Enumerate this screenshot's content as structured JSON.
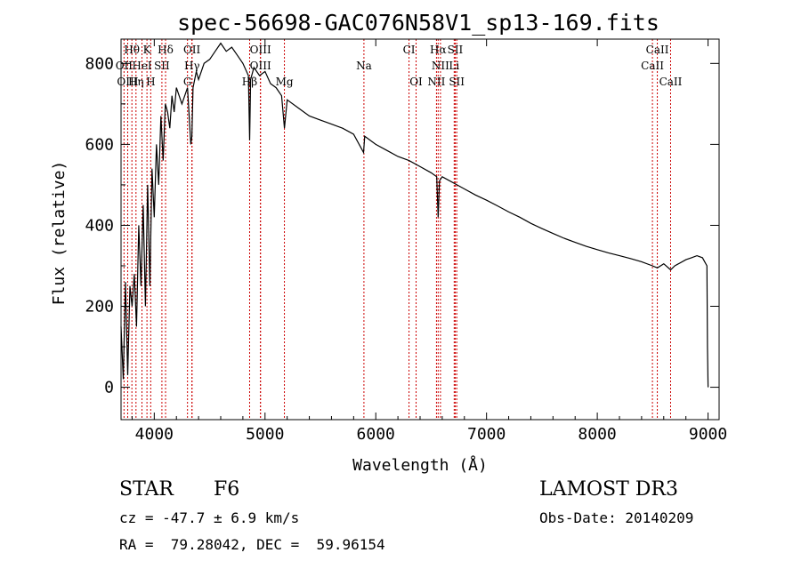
{
  "chart_data": {
    "type": "line",
    "title": "spec-56698-GAC076N58V1_sp13-169.fits",
    "xlabel": "Wavelength (Å)",
    "ylabel": "Flux (relative)",
    "xlim": [
      3700,
      9100
    ],
    "ylim": [
      -80,
      860
    ],
    "xticks": [
      4000,
      5000,
      6000,
      7000,
      8000,
      9000
    ],
    "yticks": [
      0,
      200,
      400,
      600,
      800
    ],
    "xtick_labels": [
      "4000",
      "5000",
      "6000",
      "7000",
      "8000",
      "9000"
    ],
    "ytick_labels": [
      "0",
      "200",
      "400",
      "600",
      "800"
    ],
    "grid": false,
    "spectrum": {
      "name": "flux",
      "x": [
        3700,
        3720,
        3740,
        3760,
        3780,
        3800,
        3820,
        3840,
        3860,
        3880,
        3900,
        3920,
        3940,
        3960,
        3980,
        4000,
        4020,
        4040,
        4060,
        4080,
        4100,
        4120,
        4140,
        4160,
        4180,
        4200,
        4250,
        4300,
        4330,
        4340,
        4350,
        4380,
        4400,
        4450,
        4500,
        4550,
        4600,
        4650,
        4700,
        4750,
        4800,
        4850,
        4861,
        4870,
        4900,
        4950,
        5000,
        5050,
        5100,
        5150,
        5175,
        5200,
        5300,
        5400,
        5500,
        5600,
        5700,
        5800,
        5890,
        5900,
        6000,
        6100,
        6200,
        6300,
        6400,
        6500,
        6550,
        6563,
        6575,
        6600,
        6700,
        6800,
        6900,
        7000,
        7100,
        7200,
        7300,
        7400,
        7500,
        7600,
        7700,
        7800,
        7900,
        8000,
        8100,
        8200,
        8300,
        8400,
        8498,
        8542,
        8600,
        8662,
        8700,
        8800,
        8850,
        8900,
        8950,
        8990,
        8995,
        9000
      ],
      "y": [
        150,
        20,
        260,
        30,
        250,
        200,
        280,
        150,
        400,
        250,
        450,
        200,
        500,
        250,
        540,
        420,
        600,
        500,
        670,
        560,
        700,
        680,
        640,
        720,
        680,
        740,
        700,
        740,
        600,
        620,
        740,
        780,
        760,
        800,
        810,
        830,
        850,
        830,
        840,
        820,
        800,
        770,
        610,
        760,
        790,
        770,
        780,
        750,
        740,
        720,
        640,
        710,
        690,
        670,
        660,
        650,
        640,
        625,
        580,
        620,
        600,
        585,
        570,
        560,
        545,
        530,
        520,
        420,
        510,
        520,
        505,
        490,
        475,
        462,
        448,
        433,
        420,
        405,
        392,
        380,
        368,
        358,
        348,
        340,
        332,
        325,
        318,
        310,
        300,
        295,
        305,
        290,
        300,
        315,
        320,
        325,
        320,
        300,
        100,
        0
      ]
    },
    "lines": [
      {
        "label": "Hθ",
        "x": 3798,
        "row": 0
      },
      {
        "label": "K",
        "x": 3934,
        "row": 0
      },
      {
        "label": "Hδ",
        "x": 4102,
        "row": 0
      },
      {
        "label": "OII",
        "x": 4340,
        "row": 0
      },
      {
        "label": "OIII",
        "x": 4959,
        "row": 0
      },
      {
        "label": "CI",
        "x": 6300,
        "row": 0
      },
      {
        "label": "Hα",
        "x": 6563,
        "row": 0
      },
      {
        "label": "SII",
        "x": 6717,
        "row": 0
      },
      {
        "label": "CaII",
        "x": 8542,
        "row": 0
      },
      {
        "label": "OII",
        "x": 3727,
        "row": 1
      },
      {
        "label": "HeI",
        "x": 3889,
        "row": 1
      },
      {
        "label": "SII",
        "x": 4069,
        "row": 1
      },
      {
        "label": "Hγ",
        "x": 4341,
        "row": 1
      },
      {
        "label": "OIII",
        "x": 4959,
        "row": 1
      },
      {
        "label": "Na",
        "x": 5893,
        "row": 1
      },
      {
        "label": "NII",
        "x": 6584,
        "row": 1
      },
      {
        "label": "Li",
        "x": 6708,
        "row": 1
      },
      {
        "label": "CaII",
        "x": 8498,
        "row": 1
      },
      {
        "label": "OIII",
        "x": 3760,
        "row": 2
      },
      {
        "label": "Hη",
        "x": 3835,
        "row": 2
      },
      {
        "label": "H",
        "x": 3968,
        "row": 2
      },
      {
        "label": "G",
        "x": 4300,
        "row": 2
      },
      {
        "label": "Hβ",
        "x": 4861,
        "row": 2
      },
      {
        "label": "Mg",
        "x": 5175,
        "row": 2
      },
      {
        "label": "OI",
        "x": 6364,
        "row": 2
      },
      {
        "label": "NII",
        "x": 6548,
        "row": 2
      },
      {
        "label": "SII",
        "x": 6731,
        "row": 2
      },
      {
        "label": "CaII",
        "x": 8662,
        "row": 2
      }
    ],
    "line_color": "#cc0000",
    "spectrum_color": "#000000"
  },
  "info": {
    "object_class": "STAR",
    "subclass": "F6",
    "survey": "LAMOST DR3",
    "redshift": "cz = -47.7 ± 6.9 km/s",
    "obs_date": "Obs-Date: 20140209",
    "coords": "RA =  79.28042, DEC =  59.96154"
  }
}
